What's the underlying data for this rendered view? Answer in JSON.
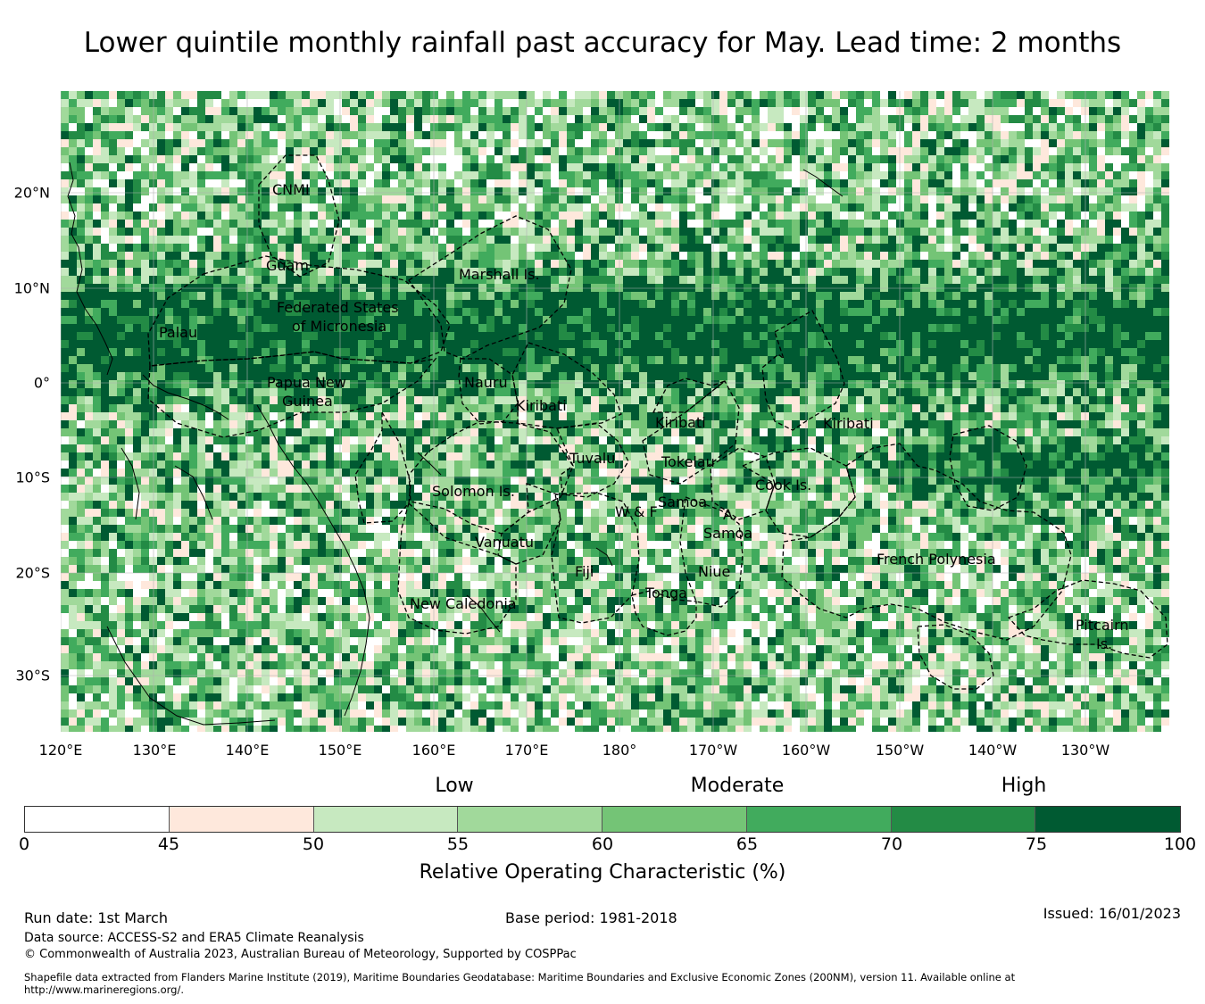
{
  "title": "Lower quintile monthly rainfall past accuracy for May. Lead time: 2 months",
  "map": {
    "lat_ticks": [
      "20°N",
      "10°N",
      "0°",
      "10°S",
      "20°S",
      "30°S"
    ],
    "lon_ticks": [
      "120°E",
      "130°E",
      "140°E",
      "150°E",
      "160°E",
      "170°E",
      "180°",
      "170°W",
      "160°W",
      "150°W",
      "140°W",
      "130°W"
    ],
    "region_labels": [
      "CNMI",
      "Guam",
      "Marshall Is.",
      "Federated States",
      "of Micronesia",
      "Palau",
      "Papua New",
      "Guinea",
      "Nauru",
      "Kiribati",
      "Kiribati",
      "Kiribati",
      "Tuvalu",
      "Tokelau",
      "Solomon Is.",
      "W & F",
      "Samoa",
      "A.",
      "Samoa",
      "Cook Is.",
      "Vanuatu",
      "Fiji",
      "Niue",
      "Tonga",
      "French Polynesia",
      "New Caledonia",
      "Pitcairn",
      "Is."
    ]
  },
  "colorbar": {
    "bands": [
      "Low",
      "Moderate",
      "High"
    ],
    "ticks": [
      "0",
      "45",
      "50",
      "55",
      "60",
      "65",
      "70",
      "75",
      "100"
    ],
    "colors": [
      "#ffffff",
      "#fee8dc",
      "#c7e9c0",
      "#a1d99b",
      "#74c476",
      "#41ab5d",
      "#238b45",
      "#005a32"
    ],
    "title": "Relative Operating Characteristic (%)"
  },
  "footer": {
    "run_date": "Run date: 1st March",
    "base_period": "Base period: 1981-2018",
    "issued": "Issued: 16/01/2023",
    "data_source": "Data source: ACCESS-S2 and ERA5 Climate Reanalysis",
    "copyright": "© Commonwealth of Australia 2023, Australian Bureau of Meteorology, Supported by COSPPac",
    "shapefile": "Shapefile data extracted from Flanders Marine Institute (2019), Maritime Boundaries Geodatabase: Maritime Boundaries and Exclusive Economic Zones (200NM), version 11. Available online at http://www.marineregions.org/."
  }
}
